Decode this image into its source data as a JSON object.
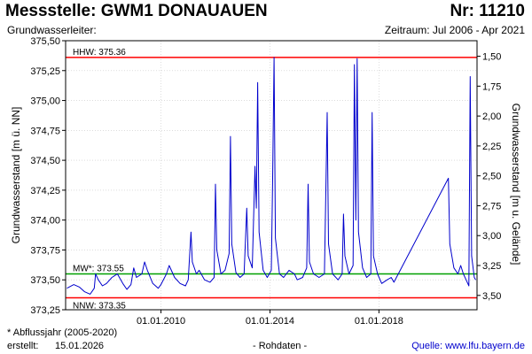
{
  "header": {
    "title": "Messstelle: GWM1 DONAUAUEN",
    "nr": "Nr: 11210",
    "subtitle_left": "Grundwasserleiter:",
    "subtitle_right": "Zeitraum: Jul 2006 - Apr 2021"
  },
  "footer": {
    "note": "* Abflussjahr (2005-2020)",
    "created_label": "erstellt:",
    "created_date": "15.01.2026",
    "center": "- Rohdaten -",
    "source": "Quelle: www.lfu.bayern.de"
  },
  "chart_data": {
    "type": "line",
    "ylabel": "Grundwasserstand [m ü. NN]",
    "y2label": "Grundwasserstand [m u. Gelände]",
    "ylim": [
      373.25,
      375.5
    ],
    "y2lim": [
      3.5,
      1.5
    ],
    "xlim": [
      "2006-07",
      "2021-04"
    ],
    "y_ticks": [
      "375,50",
      "375,25",
      "375,00",
      "374,75",
      "374,50",
      "374,25",
      "374,00",
      "373,75",
      "373,50",
      "373,25"
    ],
    "y2_ticks": [
      "1,50",
      "1,75",
      "2,00",
      "2,25",
      "2,50",
      "2,75",
      "3,00",
      "3,25",
      "3,50"
    ],
    "x_ticks": [
      {
        "date": 2010.0,
        "label": "01.01.2010"
      },
      {
        "date": 2014.0,
        "label": "01.01.2014"
      },
      {
        "date": 2018.0,
        "label": "01.01.2018"
      }
    ],
    "grid": true,
    "reference_lines": [
      {
        "label": "HHW: 375.36",
        "value": 375.36,
        "color": "#ff0000"
      },
      {
        "label": "MW*: 373.55",
        "value": 373.55,
        "color": "#00a000"
      },
      {
        "label": "NNW: 373.35",
        "value": 373.35,
        "color": "#ff0000"
      }
    ],
    "series": [
      {
        "color": "#0000cc",
        "points": [
          [
            2006.55,
            373.43
          ],
          [
            2006.8,
            373.46
          ],
          [
            2007.0,
            373.44
          ],
          [
            2007.2,
            373.4
          ],
          [
            2007.4,
            373.38
          ],
          [
            2007.55,
            373.43
          ],
          [
            2007.6,
            373.55
          ],
          [
            2007.7,
            373.5
          ],
          [
            2007.85,
            373.45
          ],
          [
            2008.0,
            373.47
          ],
          [
            2008.2,
            373.52
          ],
          [
            2008.4,
            373.55
          ],
          [
            2008.6,
            373.47
          ],
          [
            2008.75,
            373.42
          ],
          [
            2008.9,
            373.46
          ],
          [
            2009.0,
            373.6
          ],
          [
            2009.1,
            373.52
          ],
          [
            2009.3,
            373.55
          ],
          [
            2009.4,
            373.65
          ],
          [
            2009.5,
            373.58
          ],
          [
            2009.7,
            373.47
          ],
          [
            2009.9,
            373.43
          ],
          [
            2010.0,
            373.46
          ],
          [
            2010.2,
            373.55
          ],
          [
            2010.3,
            373.62
          ],
          [
            2010.5,
            373.52
          ],
          [
            2010.7,
            373.47
          ],
          [
            2010.9,
            373.45
          ],
          [
            2011.0,
            373.5
          ],
          [
            2011.1,
            373.9
          ],
          [
            2011.15,
            373.65
          ],
          [
            2011.3,
            373.55
          ],
          [
            2011.4,
            373.58
          ],
          [
            2011.6,
            373.5
          ],
          [
            2011.8,
            373.48
          ],
          [
            2011.95,
            373.52
          ],
          [
            2012.0,
            374.3
          ],
          [
            2012.05,
            373.75
          ],
          [
            2012.2,
            373.55
          ],
          [
            2012.35,
            373.58
          ],
          [
            2012.5,
            373.72
          ],
          [
            2012.55,
            374.7
          ],
          [
            2012.6,
            373.8
          ],
          [
            2012.75,
            373.56
          ],
          [
            2012.9,
            373.52
          ],
          [
            2013.05,
            373.55
          ],
          [
            2013.15,
            374.1
          ],
          [
            2013.2,
            373.7
          ],
          [
            2013.35,
            373.6
          ],
          [
            2013.45,
            374.45
          ],
          [
            2013.5,
            374.1
          ],
          [
            2013.55,
            375.15
          ],
          [
            2013.6,
            373.9
          ],
          [
            2013.75,
            373.58
          ],
          [
            2013.9,
            373.52
          ],
          [
            2014.05,
            373.58
          ],
          [
            2014.1,
            374.35
          ],
          [
            2014.15,
            375.36
          ],
          [
            2014.2,
            373.85
          ],
          [
            2014.35,
            373.55
          ],
          [
            2014.5,
            373.52
          ],
          [
            2014.7,
            373.58
          ],
          [
            2014.9,
            373.55
          ],
          [
            2015.0,
            373.5
          ],
          [
            2015.2,
            373.52
          ],
          [
            2015.35,
            373.6
          ],
          [
            2015.4,
            374.3
          ],
          [
            2015.45,
            373.65
          ],
          [
            2015.6,
            373.55
          ],
          [
            2015.8,
            373.52
          ],
          [
            2016.0,
            373.55
          ],
          [
            2016.1,
            374.9
          ],
          [
            2016.15,
            373.8
          ],
          [
            2016.3,
            373.55
          ],
          [
            2016.5,
            373.5
          ],
          [
            2016.65,
            373.55
          ],
          [
            2016.7,
            374.05
          ],
          [
            2016.75,
            373.7
          ],
          [
            2016.9,
            373.55
          ],
          [
            2017.05,
            373.62
          ],
          [
            2017.1,
            375.3
          ],
          [
            2017.15,
            374.0
          ],
          [
            2017.2,
            375.35
          ],
          [
            2017.25,
            373.9
          ],
          [
            2017.4,
            373.6
          ],
          [
            2017.55,
            373.52
          ],
          [
            2017.7,
            373.55
          ],
          [
            2017.75,
            374.9
          ],
          [
            2017.8,
            373.7
          ],
          [
            2017.95,
            373.55
          ],
          [
            2018.1,
            373.47
          ],
          [
            2018.3,
            373.5
          ],
          [
            2018.45,
            373.52
          ],
          [
            2018.55,
            373.48
          ],
          [
            2020.55,
            374.35
          ],
          [
            2020.6,
            373.8
          ],
          [
            2020.75,
            373.6
          ],
          [
            2020.9,
            373.55
          ],
          [
            2021.0,
            373.62
          ],
          [
            2021.1,
            373.55
          ],
          [
            2021.2,
            373.5
          ],
          [
            2021.3,
            373.45
          ],
          [
            2021.35,
            375.2
          ],
          [
            2021.4,
            373.7
          ],
          [
            2021.5,
            373.52
          ],
          [
            2021.55,
            373.5
          ]
        ]
      }
    ]
  }
}
